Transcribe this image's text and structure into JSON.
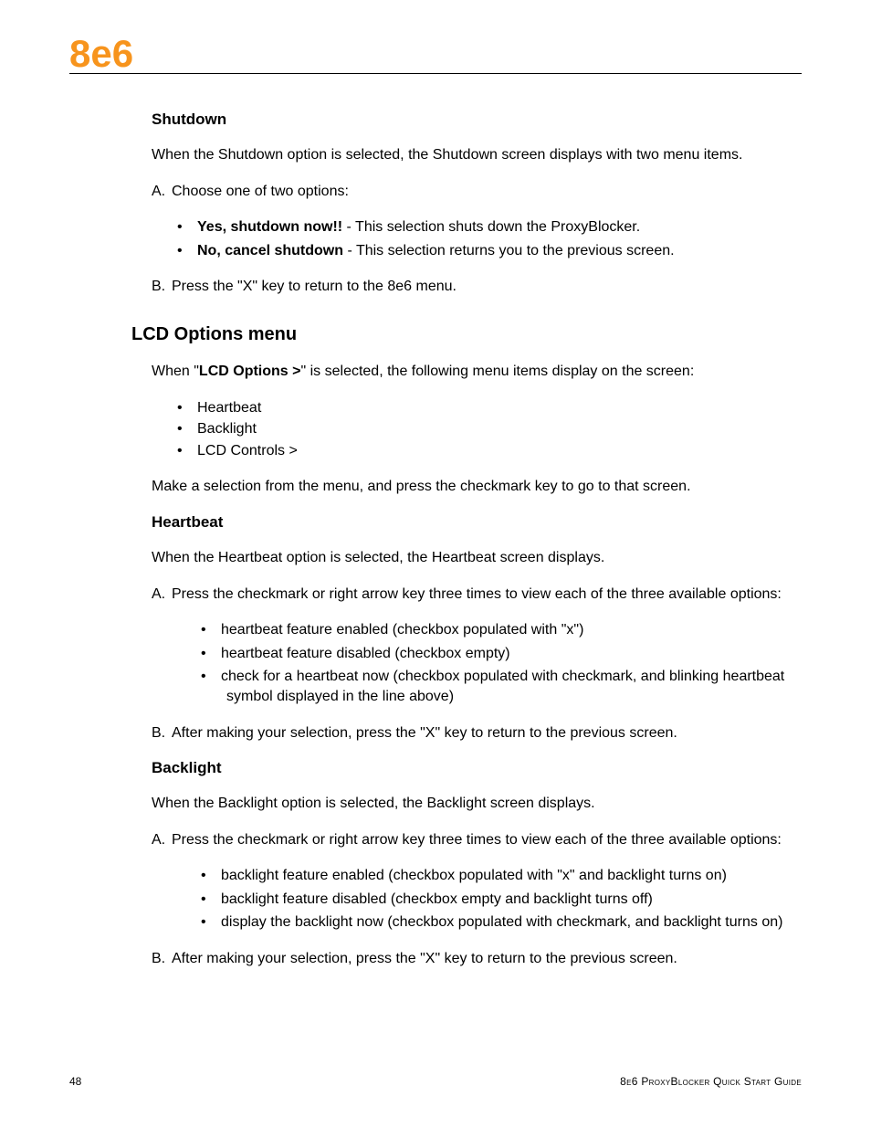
{
  "brand": {
    "logo": "8e6",
    "logo_color": "#f7941d"
  },
  "shutdown": {
    "heading": "Shutdown",
    "intro": "When the Shutdown option is selected, the Shutdown screen displays with two menu items.",
    "stepA_marker": "A.",
    "stepA_text": "Choose one of two options:",
    "opt1_label": "Yes, shutdown now!!",
    "opt1_rest": " - This selection shuts down the ProxyBlocker.",
    "opt2_label": "No, cancel shutdown",
    "opt2_rest": " - This selection returns you to the previous screen.",
    "stepB_marker": "B.",
    "stepB_text": "Press the \"X\" key to return to the 8e6 menu."
  },
  "lcd": {
    "heading": "LCD Options menu",
    "intro_pre": "When \"",
    "intro_bold": "LCD Options >",
    "intro_post": "\" is selected, the following menu items display on the screen:",
    "items": {
      "i1": "Heartbeat",
      "i2": "Backlight",
      "i3": "LCD Controls >"
    },
    "outro": "Make a selection from the menu, and press the checkmark key to go to that screen."
  },
  "heartbeat": {
    "heading": "Heartbeat",
    "intro": "When the Heartbeat option is selected, the Heartbeat screen displays.",
    "stepA_marker": "A.",
    "stepA_text": "Press the checkmark or right arrow key three times to view each of the three available options:",
    "o1": "heartbeat feature enabled (checkbox populated with \"x\")",
    "o2": "heartbeat feature disabled (checkbox empty)",
    "o3": "check for a heartbeat now (checkbox populated with checkmark, and blinking heartbeat symbol displayed in the line above)",
    "stepB_marker": "B.",
    "stepB_text": "After making your selection, press the \"X\" key to return to the previous screen."
  },
  "backlight": {
    "heading": "Backlight",
    "intro": "When the Backlight option is selected, the Backlight screen displays.",
    "stepA_marker": "A.",
    "stepA_text": "Press the checkmark or right arrow key three times to view each of the three available options:",
    "o1": "backlight feature enabled (checkbox populated with \"x\" and backlight turns on)",
    "o2": "backlight feature disabled (checkbox empty and backlight turns off)",
    "o3": "display the backlight now (checkbox populated with checkmark, and backlight turns on)",
    "stepB_marker": "B.",
    "stepB_text": "After making your selection, press the \"X\" key to return to the previous screen."
  },
  "footer": {
    "page": "48",
    "title": "8e6 ProxyBlocker Quick Start Guide"
  }
}
